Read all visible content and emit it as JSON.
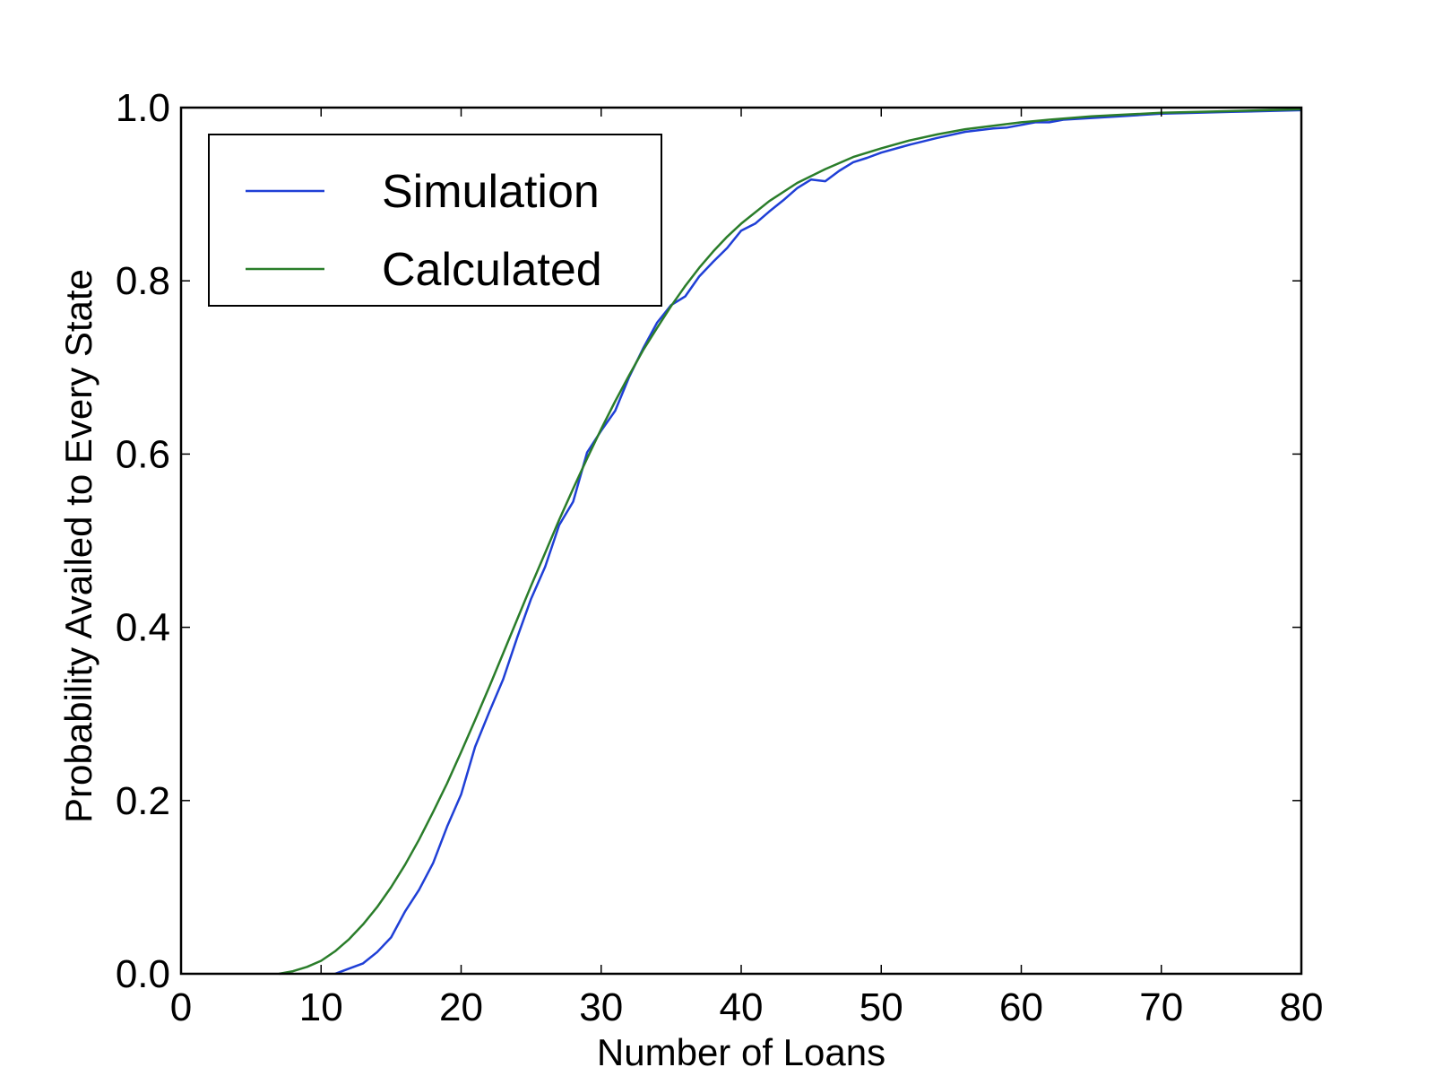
{
  "chart_data": {
    "type": "line",
    "title": "",
    "xlabel": "Number of Loans",
    "ylabel": "Probability Availed to Every State",
    "xlim": [
      0,
      80
    ],
    "ylim": [
      0,
      1.0
    ],
    "xticks": [
      0,
      10,
      20,
      30,
      40,
      50,
      60,
      70,
      80
    ],
    "xtick_labels": [
      "0",
      "10",
      "20",
      "30",
      "40",
      "50",
      "60",
      "70",
      "80"
    ],
    "yticks": [
      0,
      0.2,
      0.4,
      0.6,
      0.8,
      1.0
    ],
    "ytick_labels": [
      "0.0",
      "0.2",
      "0.4",
      "0.6",
      "0.8",
      "1.0"
    ],
    "grid": false,
    "legend_position": "top-left",
    "series": [
      {
        "name": "Simulation",
        "color": "#1f3fd6",
        "x": [
          11,
          12,
          13,
          14,
          15,
          16,
          17,
          18,
          19,
          20,
          21,
          22,
          23,
          24,
          25,
          26,
          27,
          28,
          29,
          30,
          31,
          32,
          33,
          34,
          35,
          36,
          37,
          38,
          39,
          40,
          41,
          42,
          43,
          44,
          45,
          46,
          47,
          48,
          49,
          50,
          52,
          54,
          56,
          58,
          59,
          60,
          61,
          62,
          63,
          65,
          67,
          70,
          75,
          80
        ],
        "y": [
          0.0,
          0.006,
          0.012,
          0.025,
          0.042,
          0.072,
          0.097,
          0.128,
          0.17,
          0.207,
          0.262,
          0.302,
          0.34,
          0.388,
          0.433,
          0.47,
          0.518,
          0.545,
          0.602,
          0.627,
          0.65,
          0.689,
          0.722,
          0.752,
          0.772,
          0.782,
          0.805,
          0.822,
          0.838,
          0.858,
          0.866,
          0.88,
          0.893,
          0.907,
          0.917,
          0.915,
          0.927,
          0.937,
          0.942,
          0.948,
          0.957,
          0.965,
          0.972,
          0.976,
          0.977,
          0.98,
          0.983,
          0.983,
          0.986,
          0.988,
          0.99,
          0.993,
          0.995,
          0.997
        ]
      },
      {
        "name": "Calculated",
        "color": "#2a7d2a",
        "x": [
          7,
          8,
          9,
          10,
          11,
          12,
          13,
          14,
          15,
          16,
          17,
          18,
          19,
          20,
          21,
          22,
          23,
          24,
          25,
          26,
          27,
          28,
          29,
          30,
          31,
          32,
          33,
          34,
          35,
          36,
          37,
          38,
          39,
          40,
          42,
          44,
          46,
          48,
          50,
          52,
          54,
          56,
          58,
          60,
          62,
          65,
          70,
          75,
          80
        ],
        "y": [
          0.0,
          0.003,
          0.008,
          0.015,
          0.026,
          0.04,
          0.057,
          0.077,
          0.1,
          0.126,
          0.155,
          0.187,
          0.22,
          0.256,
          0.293,
          0.331,
          0.37,
          0.409,
          0.448,
          0.486,
          0.524,
          0.56,
          0.595,
          0.629,
          0.661,
          0.691,
          0.72,
          0.746,
          0.771,
          0.794,
          0.815,
          0.834,
          0.851,
          0.866,
          0.892,
          0.913,
          0.929,
          0.943,
          0.953,
          0.962,
          0.969,
          0.975,
          0.979,
          0.983,
          0.986,
          0.99,
          0.994,
          0.996,
          0.998
        ]
      }
    ]
  }
}
